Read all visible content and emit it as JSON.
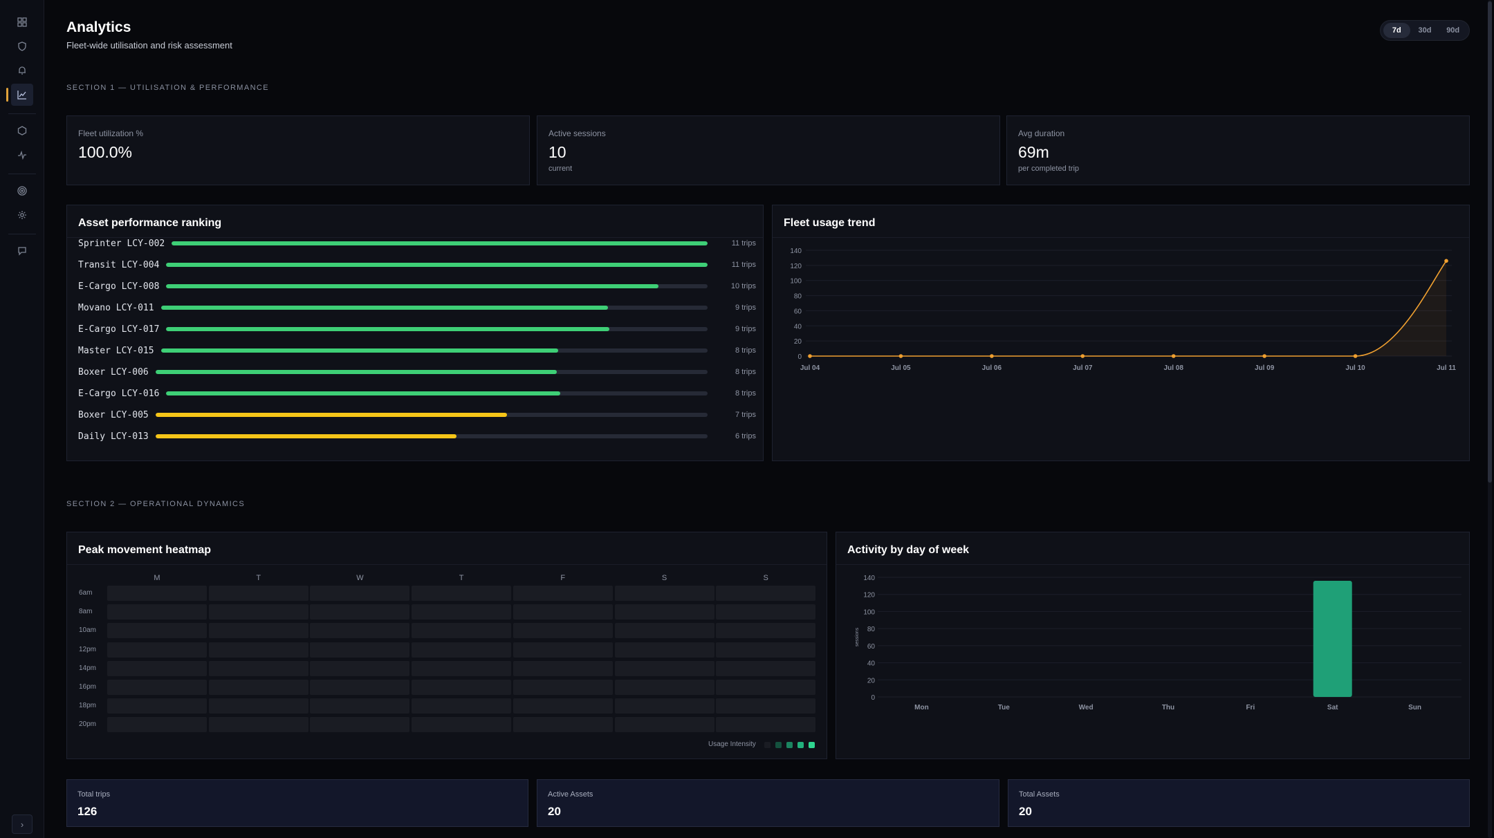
{
  "sidebar": {
    "icons": [
      "grid-icon",
      "shield-icon",
      "bell-icon",
      "chart-line-icon",
      "hexagon-icon",
      "pulse-icon",
      "target-icon",
      "gear-icon",
      "chat-icon"
    ],
    "collapse_glyph": "›"
  },
  "header": {
    "title": "Analytics",
    "subtitle": "Fleet-wide utilisation and risk assessment"
  },
  "range": {
    "options": [
      "7d",
      "30d",
      "90d"
    ],
    "selected": "7d"
  },
  "section1": {
    "label": "SECTION 1 — UTILISATION & PERFORMANCE"
  },
  "kpis": [
    {
      "label": "Fleet utilization %",
      "value": "100.0%",
      "sub": ""
    },
    {
      "label": "Active sessions",
      "value": "10",
      "sub": "current"
    },
    {
      "label": "Avg duration",
      "value": "69m",
      "sub": "per completed trip"
    }
  ],
  "ranking": {
    "title": "Asset performance ranking",
    "max": 11,
    "items": [
      {
        "name": "Sprinter LCY-002",
        "trips": 11,
        "label": "11 trips",
        "color": "#3ecf76"
      },
      {
        "name": "Transit LCY-004",
        "trips": 11,
        "label": "11 trips",
        "color": "#3ecf76"
      },
      {
        "name": "E-Cargo LCY-008",
        "trips": 10,
        "label": "10 trips",
        "color": "#3ecf76"
      },
      {
        "name": "Movano LCY-011",
        "trips": 9,
        "label": "9 trips",
        "color": "#3ecf76"
      },
      {
        "name": "E-Cargo LCY-017",
        "trips": 9,
        "label": "9 trips",
        "color": "#3ecf76"
      },
      {
        "name": "Master LCY-015",
        "trips": 8,
        "label": "8 trips",
        "color": "#3ecf76"
      },
      {
        "name": "Boxer LCY-006",
        "trips": 8,
        "label": "8 trips",
        "color": "#3ecf76"
      },
      {
        "name": "E-Cargo LCY-016",
        "trips": 8,
        "label": "8 trips",
        "color": "#3ecf76"
      },
      {
        "name": "Boxer LCY-005",
        "trips": 7,
        "label": "7 trips",
        "color": "#f5c518"
      },
      {
        "name": "Daily LCY-013",
        "trips": 6,
        "label": "6 trips",
        "color": "#f5c518"
      }
    ]
  },
  "trend": {
    "title": "Fleet usage trend"
  },
  "section2": {
    "label": "SECTION 2 — OPERATIONAL DYNAMICS"
  },
  "heatmap": {
    "title": "Peak movement heatmap",
    "days": [
      "M",
      "T",
      "W",
      "T",
      "F",
      "S",
      "S"
    ],
    "hours": [
      "6am",
      "8am",
      "10am",
      "12pm",
      "14pm",
      "16pm",
      "18pm",
      "20pm"
    ],
    "legend_label": "Usage Intensity",
    "legend_colors": [
      "#1a1c23",
      "#14513e",
      "#1b8460",
      "#22b07c",
      "#2fd690"
    ]
  },
  "weekly": {
    "title": "Activity by day of week"
  },
  "bottom_kpis": [
    {
      "label": "Total trips",
      "value": "126"
    },
    {
      "label": "Active Assets",
      "value": "20"
    },
    {
      "label": "Total Assets",
      "value": "20"
    }
  ],
  "chart_data": [
    {
      "type": "line",
      "title": "Fleet usage trend",
      "x": [
        "Jul 04",
        "Jul 05",
        "Jul 06",
        "Jul 07",
        "Jul 08",
        "Jul 09",
        "Jul 10",
        "Jul 11"
      ],
      "series": [
        {
          "values": [
            0,
            0,
            0,
            0,
            0,
            0,
            0,
            126
          ],
          "color": "#f0a030"
        }
      ],
      "ylim": [
        0,
        140
      ],
      "yticks": [
        0,
        20,
        40,
        60,
        80,
        100,
        120,
        140
      ],
      "grid": true
    },
    {
      "type": "bar",
      "title": "Activity by day of week",
      "categories": [
        "Mon",
        "Tue",
        "Wed",
        "Thu",
        "Fri",
        "Sat",
        "Sun"
      ],
      "values": [
        0,
        0,
        0,
        0,
        0,
        136,
        0
      ],
      "ylabel": "sessions",
      "ylim": [
        0,
        140
      ],
      "yticks": [
        0,
        20,
        40,
        60,
        80,
        100,
        120,
        140
      ],
      "color": "#1fa077",
      "grid": true
    }
  ]
}
